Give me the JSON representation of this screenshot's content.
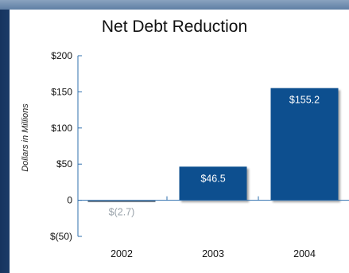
{
  "chart_data": {
    "type": "bar",
    "title": "Net Debt Reduction",
    "xlabel": "",
    "ylabel": "Dollars in Millions",
    "categories": [
      "2002",
      "2003",
      "2004"
    ],
    "values": [
      -2.7,
      46.5,
      155.2
    ],
    "value_labels": [
      "$(2.7)",
      "$46.5",
      "$155.2"
    ],
    "ylim": [
      -50,
      200
    ],
    "yticks": [
      200,
      150,
      100,
      50,
      0,
      -50
    ],
    "ytick_labels": [
      "$200",
      "$150",
      "$100",
      "$50",
      "0",
      "$(50)"
    ],
    "grid": false,
    "legend": "none",
    "colors": {
      "bar": "#0e4f8f",
      "negative_bar": "#6f7d8b",
      "negative_label": "#9aa3ab",
      "axis": "#2f6fae",
      "bar_label": "#ffffff"
    }
  }
}
